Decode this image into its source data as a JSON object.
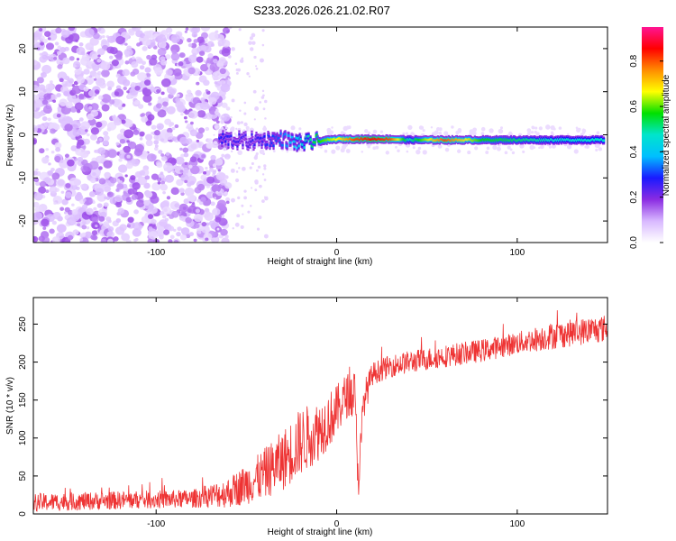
{
  "title": "S233.2026.026.21.02.R07",
  "chart_data": [
    {
      "type": "heatmap",
      "xlabel": "Height of straight line (km)",
      "ylabel": "Frequency (Hz)",
      "xlim": [
        -168,
        150
      ],
      "ylim": [
        -25,
        25
      ],
      "xticks": [
        -100,
        0,
        100
      ],
      "yticks": [
        -20,
        -10,
        0,
        10,
        20
      ],
      "colorbar": {
        "label": "Normalized spectral amplitude",
        "range": [
          0,
          0.95
        ],
        "ticks": [
          "0.0",
          "0.2",
          "0.4",
          "0.6",
          "0.8"
        ],
        "tick_values": [
          0,
          0.2,
          0.4,
          0.6,
          0.8
        ],
        "colors": [
          "#ffffff",
          "#d8b8ff",
          "#8a2be2",
          "#1a1aff",
          "#00bfff",
          "#00e5cc",
          "#00e000",
          "#ffff00",
          "#ff8c00",
          "#ff0000",
          "#ff1493"
        ]
      },
      "noise_region_x": [
        -168,
        -68
      ],
      "signal_line": {
        "x": [
          -65,
          -50,
          -40,
          -30,
          -20,
          -10,
          0,
          10,
          20,
          30,
          40,
          60,
          80,
          100,
          120,
          148
        ],
        "freq": [
          -1.0,
          -1.5,
          -1.2,
          -1.0,
          -2.0,
          -1.5,
          -1.0,
          -1.0,
          -1.0,
          -1.0,
          -1.2,
          -1.2,
          -1.2,
          -1.2,
          -1.2,
          -1.2
        ],
        "amplitude": [
          0.3,
          0.25,
          0.3,
          0.35,
          0.45,
          0.6,
          0.7,
          0.85,
          0.9,
          0.85,
          0.5,
          0.85,
          0.6,
          0.55,
          0.5,
          0.5
        ]
      }
    },
    {
      "type": "line",
      "xlabel": "Height of straight line (km)",
      "ylabel": "SNR (10 * v/v)",
      "xlim": [
        -168,
        150
      ],
      "ylim": [
        0,
        285
      ],
      "xticks": [
        -100,
        0,
        100
      ],
      "yticks": [
        0,
        50,
        100,
        150,
        200,
        250
      ],
      "color": "#ee3333",
      "series": [
        {
          "name": "SNR",
          "trend_x": [
            -168,
            -120,
            -80,
            -60,
            -45,
            -30,
            -20,
            -10,
            0,
            5,
            10,
            12,
            15,
            20,
            30,
            40,
            60,
            80,
            100,
            120,
            150
          ],
          "trend_y": [
            15,
            18,
            20,
            28,
            45,
            70,
            95,
            110,
            135,
            155,
            160,
            40,
            150,
            185,
            195,
            200,
            208,
            215,
            225,
            235,
            245
          ],
          "noise_amplitude": [
            12,
            12,
            12,
            20,
            30,
            40,
            45,
            40,
            35,
            30,
            30,
            25,
            25,
            15,
            15,
            15,
            15,
            15,
            15,
            18,
            18
          ]
        }
      ]
    }
  ]
}
